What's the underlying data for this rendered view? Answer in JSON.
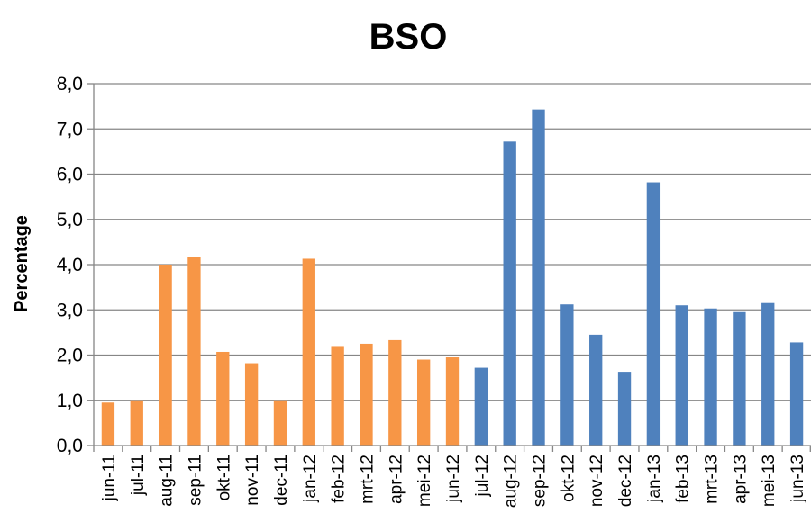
{
  "chart_data": {
    "type": "bar",
    "title": "BSO",
    "ylabel": "Percentage",
    "xlabel": "",
    "ylim": [
      0,
      8
    ],
    "ytick_step": 1,
    "ytick_labels": [
      "0,0",
      "1,0",
      "2,0",
      "3,0",
      "4,0",
      "5,0",
      "6,0",
      "7,0",
      "8,0"
    ],
    "grid": true,
    "legend": "none",
    "categories": [
      "jun-11",
      "jul-11",
      "aug-11",
      "sep-11",
      "okt-11",
      "nov-11",
      "dec-11",
      "jan-12",
      "feb-12",
      "mrt-12",
      "apr-12",
      "mei-12",
      "jun-12",
      "jul-12",
      "aug-12",
      "sep-12",
      "okt-12",
      "nov-12",
      "dec-12",
      "jan-13",
      "feb-13",
      "mrt-13",
      "apr-13",
      "mei-13",
      "jun-13"
    ],
    "values": [
      0.95,
      1.0,
      4.0,
      4.17,
      2.07,
      1.82,
      1.0,
      4.13,
      2.2,
      2.25,
      2.33,
      1.9,
      1.95,
      1.72,
      6.72,
      7.43,
      3.12,
      2.45,
      1.63,
      5.82,
      3.1,
      3.03,
      2.95,
      3.15,
      2.28
    ],
    "bar_colors": [
      "#F79646",
      "#F79646",
      "#F79646",
      "#F79646",
      "#F79646",
      "#F79646",
      "#F79646",
      "#F79646",
      "#F79646",
      "#F79646",
      "#F79646",
      "#F79646",
      "#F79646",
      "#4F81BD",
      "#4F81BD",
      "#4F81BD",
      "#4F81BD",
      "#4F81BD",
      "#4F81BD",
      "#4F81BD",
      "#4F81BD",
      "#4F81BD",
      "#4F81BD",
      "#4F81BD",
      "#4F81BD"
    ]
  }
}
